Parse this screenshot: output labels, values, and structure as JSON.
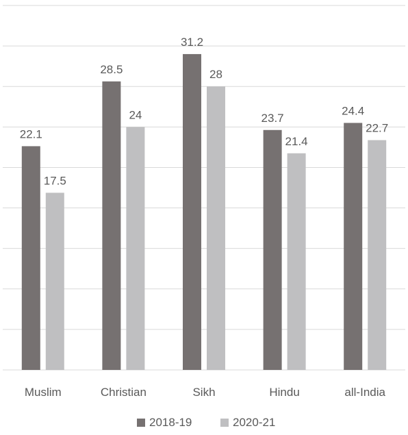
{
  "chart_data": {
    "type": "bar",
    "title": "",
    "xlabel": "",
    "ylabel": "",
    "categories": [
      "Muslim",
      "Christian",
      "Sikh",
      "Hindu",
      "all-India"
    ],
    "series": [
      {
        "name": "2018-19",
        "values": [
          22.1,
          28.5,
          31.2,
          23.7,
          24.4
        ],
        "color": "#767171"
      },
      {
        "name": "2020-21",
        "values": [
          17.5,
          24,
          28,
          21.4,
          22.7
        ],
        "color": "#bfbfc1"
      }
    ],
    "ylim": [
      0,
      36
    ],
    "gridlines": true,
    "y_axis_labels_shown": false,
    "legend_position": "bottom",
    "grid_color": "#d9d9d9"
  }
}
